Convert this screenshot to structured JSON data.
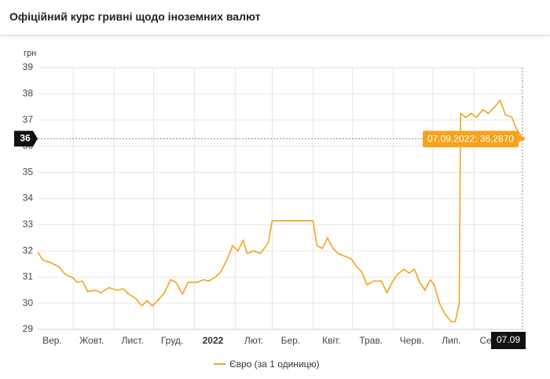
{
  "header": {
    "title": "Офіційний курс гривні щодо іноземних валют"
  },
  "chart_data": {
    "type": "line",
    "y_label": "грн",
    "x": [
      "04.09.2021",
      "08.09.2021",
      "14.09.2021",
      "20.09.2021",
      "25.09.2021",
      "30.09.2021",
      "04.10.2021",
      "08.10.2021",
      "12.10.2021",
      "18.10.2021",
      "22.10.2021",
      "28.10.2021",
      "03.11.2021",
      "08.11.2021",
      "12.11.2021",
      "17.11.2021",
      "22.11.2021",
      "26.11.2021",
      "30.11.2021",
      "04.12.2021",
      "09.12.2021",
      "14.12.2021",
      "18.12.2021",
      "23.12.2021",
      "27.12.2021",
      "03.01.2022",
      "08.01.2022",
      "12.01.2022",
      "17.01.2022",
      "21.01.2022",
      "26.01.2022",
      "30.01.2022",
      "03.02.2022",
      "07.02.2022",
      "10.02.2022",
      "15.02.2022",
      "20.02.2022",
      "23.02.2022",
      "26.02.2022",
      "01.03.2022",
      "15.03.2022",
      "01.04.2022",
      "04.04.2022",
      "08.04.2022",
      "12.04.2022",
      "16.04.2022",
      "20.04.2022",
      "25.04.2022",
      "30.04.2022",
      "04.05.2022",
      "08.05.2022",
      "12.05.2022",
      "17.05.2022",
      "23.05.2022",
      "27.05.2022",
      "31.05.2022",
      "04.06.2022",
      "09.06.2022",
      "13.06.2022",
      "17.06.2022",
      "21.06.2022",
      "25.06.2022",
      "29.06.2022",
      "02.07.2022",
      "06.07.2022",
      "10.07.2022",
      "15.07.2022",
      "18.07.2022",
      "21.07.2022",
      "22.07.2022",
      "26.07.2022",
      "30.07.2022",
      "03.08.2022",
      "08.08.2022",
      "12.08.2022",
      "17.08.2022",
      "21.08.2022",
      "25.08.2022",
      "30.08.2022",
      "02.09.2022",
      "07.09.2022"
    ],
    "series": [
      {
        "name": "Євро (за 1 одиницю)",
        "color": "#f6a21a",
        "values": [
          31.95,
          31.65,
          31.55,
          31.4,
          31.1,
          31.0,
          30.8,
          30.85,
          30.45,
          30.5,
          30.4,
          30.6,
          30.5,
          30.55,
          30.35,
          30.2,
          29.9,
          30.1,
          29.9,
          30.1,
          30.4,
          30.9,
          30.8,
          30.35,
          30.8,
          30.8,
          30.9,
          30.85,
          31.0,
          31.2,
          31.7,
          32.2,
          32.0,
          32.4,
          31.9,
          32.0,
          31.9,
          32.1,
          32.3,
          33.15,
          33.15,
          33.15,
          32.2,
          32.1,
          32.5,
          32.1,
          31.9,
          31.8,
          31.7,
          31.4,
          31.2,
          30.7,
          30.85,
          30.85,
          30.4,
          30.8,
          31.1,
          31.3,
          31.15,
          31.3,
          30.8,
          30.5,
          30.9,
          30.7,
          30.0,
          29.6,
          29.3,
          29.3,
          30.0,
          37.25,
          37.1,
          37.25,
          37.1,
          37.4,
          37.25,
          37.5,
          37.75,
          37.2,
          37.1,
          36.7,
          36.287
        ]
      }
    ],
    "xlim": [
      "04.09.2021",
      "07.09.2022"
    ],
    "xticks": [
      {
        "value": "15.09.2021",
        "label": "Вер."
      },
      {
        "value": "15.10.2021",
        "label": "Жовт."
      },
      {
        "value": "15.11.2021",
        "label": "Лист."
      },
      {
        "value": "15.12.2021",
        "label": "Груд."
      },
      {
        "value": "15.01.2022",
        "label": "2022"
      },
      {
        "value": "15.02.2022",
        "label": "Лют."
      },
      {
        "value": "15.03.2022",
        "label": "Бер."
      },
      {
        "value": "15.04.2022",
        "label": "Квіт."
      },
      {
        "value": "15.05.2022",
        "label": "Трав."
      },
      {
        "value": "15.06.2022",
        "label": "Черв."
      },
      {
        "value": "15.07.2022",
        "label": "Лип."
      },
      {
        "value": "15.08.2022",
        "label": "Серп."
      }
    ],
    "ylim": [
      29,
      39
    ],
    "yticks": [
      29,
      30,
      31,
      32,
      33,
      34,
      35,
      36,
      37,
      38,
      39
    ],
    "grid": true,
    "legend": "bottom",
    "crosshair": {
      "y_label": "36",
      "x_label": "07.09",
      "tooltip": "07.09.2022: 36,2870"
    }
  }
}
